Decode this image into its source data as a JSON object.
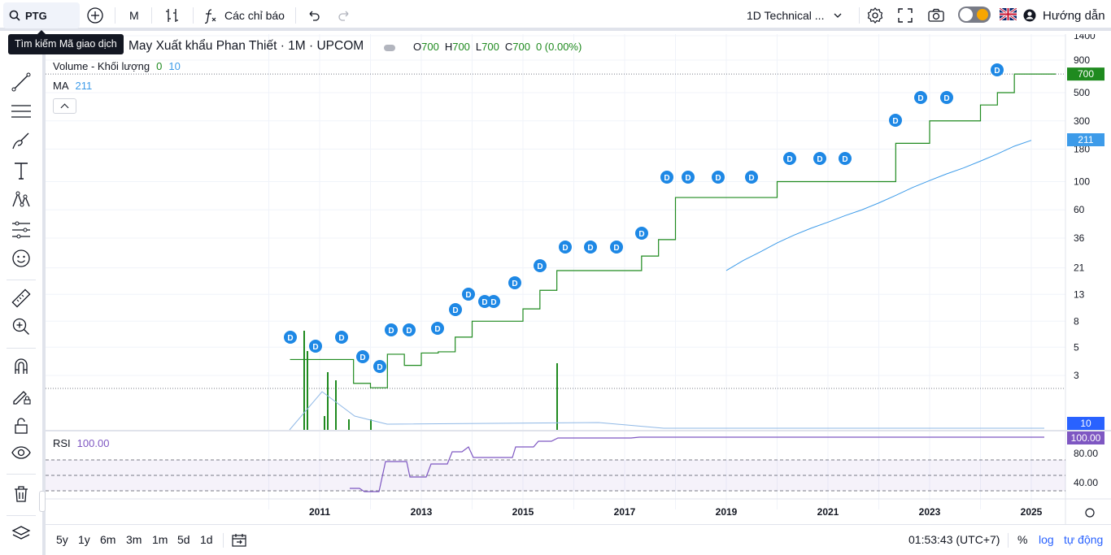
{
  "toolbar": {
    "symbol": "PTG",
    "interval": "M",
    "indicators_label": "Các chỉ báo",
    "layout_name": "1D Technical ...",
    "help_label": "Hướng dẫn"
  },
  "tooltip": {
    "text": "Tìm kiếm Mã giao dịch"
  },
  "legend": {
    "title": "May Xuất khẩu Phan Thiết · 1M · UPCOM",
    "open_label": "O",
    "open": "700",
    "high_label": "H",
    "high": "700",
    "low_label": "L",
    "low": "700",
    "close_label": "C",
    "close": "700",
    "change": "0 (0.00%)",
    "volume_label": "Volume - Khối lượng",
    "volume_value": "0",
    "volume_ma": "10",
    "ma_label": "MA",
    "ma_value": "211",
    "rsi_label": "RSI",
    "rsi_value": "100.00"
  },
  "price_axis": {
    "labels": [
      "1400",
      "900",
      "500",
      "300",
      "180",
      "100",
      "60",
      "36",
      "21",
      "13",
      "8",
      "5",
      "3"
    ],
    "last_price": "700",
    "ma_tag": "211",
    "vol_tag": "10",
    "rsi_tag": "100.00",
    "rsi_labels": [
      "80.00",
      "40.00"
    ]
  },
  "time_axis": {
    "labels": [
      "2011",
      "2013",
      "2015",
      "2017",
      "2019",
      "2021",
      "2023",
      "2025"
    ]
  },
  "dividend_marker": "D",
  "bottom": {
    "ranges": [
      "5y",
      "1y",
      "6m",
      "3m",
      "1m",
      "5d",
      "1d"
    ],
    "clock": "01:53:43 (UTC+7)",
    "percent": "%",
    "log": "log",
    "auto": "tự động"
  },
  "colors": {
    "up": "#1f8a1f",
    "down": "#d32f2f",
    "ma": "#3d9be9",
    "rsi": "#7e57c2",
    "accent": "#2962ff"
  },
  "chart_data": {
    "type": "line",
    "scale": "log",
    "x": [
      "2010-06",
      "2010-09",
      "2011-01",
      "2011-05",
      "2011-09",
      "2012-01",
      "2012-05",
      "2012-09",
      "2013-01",
      "2013-05",
      "2013-09",
      "2014-01",
      "2014-05",
      "2014-09",
      "2015-01",
      "2015-05",
      "2015-09",
      "2016-01",
      "2016-05",
      "2016-09",
      "2017-01",
      "2017-05",
      "2017-09",
      "2018-01",
      "2018-05",
      "2018-09",
      "2019-01",
      "2019-05",
      "2019-09",
      "2020-01",
      "2020-05",
      "2020-09",
      "2021-01",
      "2021-05",
      "2021-09",
      "2022-01",
      "2022-05",
      "2022-09",
      "2023-01",
      "2023-05",
      "2023-09",
      "2024-01",
      "2024-05",
      "2024-09",
      "2025-01"
    ],
    "series": [
      {
        "values": [
          4,
          4,
          4,
          4,
          2.6,
          2.4,
          4.4,
          3.6,
          4.5,
          4.6,
          6,
          8,
          8,
          8,
          10,
          14,
          20,
          20,
          20,
          20,
          20,
          26,
          35,
          75,
          75,
          75,
          75,
          75,
          75,
          100,
          100,
          100,
          100,
          100,
          100,
          100,
          200,
          200,
          300,
          300,
          300,
          400,
          500,
          700,
          700
        ]
      },
      {
        "name": "MA",
        "values": [
          null,
          null,
          null,
          null,
          null,
          null,
          null,
          null,
          null,
          null,
          null,
          null,
          null,
          null,
          null,
          null,
          null,
          null,
          null,
          null,
          null,
          null,
          null,
          null,
          null,
          null,
          20,
          24,
          28,
          33,
          38,
          43,
          48,
          54,
          60,
          68,
          78,
          90,
          102,
          115,
          128,
          145,
          165,
          190,
          211
        ]
      }
    ],
    "ylim": [
      2,
      1400
    ]
  }
}
